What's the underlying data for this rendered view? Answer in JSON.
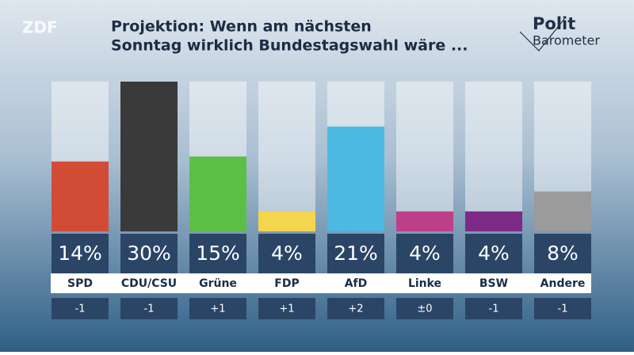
{
  "header": {
    "logo": "ZDF",
    "brand_top": "Polit",
    "brand_bottom": "Barometer"
  },
  "chart_data": {
    "type": "bar",
    "title_lines": [
      "Projektion: Wenn am nächsten",
      "Sonntag wirklich Bundestagswahl wäre ..."
    ],
    "categories": [
      "SPD",
      "CDU/CSU",
      "Grüne",
      "FDP",
      "AfD",
      "Linke",
      "BSW",
      "Andere"
    ],
    "values": [
      14,
      30,
      15,
      4,
      21,
      4,
      4,
      8
    ],
    "value_labels": [
      "14%",
      "30%",
      "15%",
      "4%",
      "21%",
      "4%",
      "4%",
      "8%"
    ],
    "changes": [
      "-1",
      "-1",
      "+1",
      "+1",
      "+2",
      "±0",
      "-1",
      "-1"
    ],
    "colors": [
      "#d24c35",
      "#3a3a3a",
      "#5cbf45",
      "#f5d44e",
      "#4db9e1",
      "#bd3f8a",
      "#7d2a87",
      "#9b9b9b"
    ],
    "ylim": [
      0,
      30
    ]
  }
}
